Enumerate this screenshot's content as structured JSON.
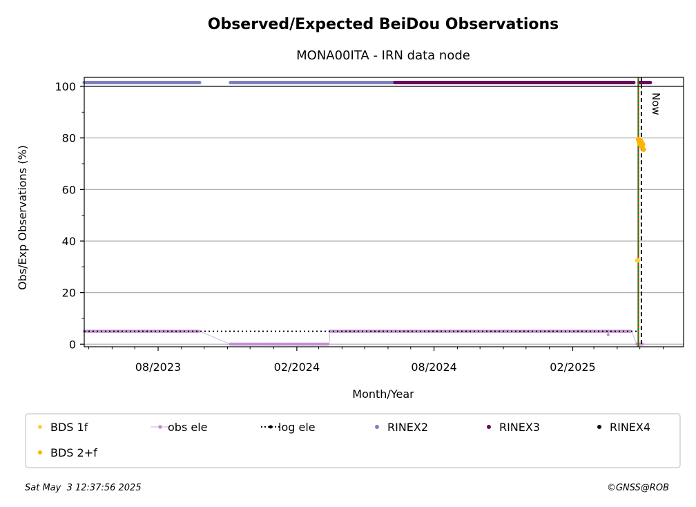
{
  "chart_data": {
    "type": "scatter",
    "title": "Observed/Expected BeiDou Observations",
    "subtitle": "MONA00ITA - IRN data node",
    "xlabel": "Month/Year",
    "ylabel": "Obs/Exp Observations (%)",
    "x_range": [
      "2023-04-25",
      "2025-06-28"
    ],
    "ylim": [
      -1,
      103.5
    ],
    "y_ticks": [
      0,
      20,
      40,
      60,
      80,
      100
    ],
    "x_ticks": [
      "2023-08-01",
      "2024-02-01",
      "2024-08-01",
      "2025-02-01"
    ],
    "x_tick_labels": [
      "08/2023",
      "02/2024",
      "08/2024",
      "02/2025"
    ],
    "grid": "horizontal",
    "now_label": "Now",
    "now_date": "2025-05-03",
    "marker_dates": [
      "2025-04-29"
    ],
    "legend": {
      "placement": "bottom",
      "entries": [
        {
          "name": "BDS 1f",
          "color": "#ffcf40",
          "marker": "dot"
        },
        {
          "name": "obs ele",
          "color": "#c38fd0",
          "marker": "line-dot"
        },
        {
          "name": "log ele",
          "color": "#000000",
          "marker": "dotted-line"
        },
        {
          "name": "RINEX2",
          "color": "#8080c0",
          "marker": "dot"
        },
        {
          "name": "RINEX3",
          "color": "#6a0a5e",
          "marker": "dot"
        },
        {
          "name": "RINEX4",
          "color": "#1a0618",
          "marker": "dot"
        },
        {
          "name": "BDS 2+f",
          "color": "#ffb400",
          "marker": "dot"
        }
      ]
    },
    "series": [
      {
        "name": "RINEX2",
        "color": "#8080c0",
        "kind": "bar",
        "y": 101.5,
        "segments": [
          [
            "2023-04-25",
            "2023-09-25"
          ],
          [
            "2023-11-05",
            "2024-06-10"
          ]
        ]
      },
      {
        "name": "RINEX3",
        "color": "#6a0a5e",
        "kind": "bar",
        "y": 101.5,
        "segments": [
          [
            "2024-06-10",
            "2025-04-23"
          ],
          [
            "2025-04-30",
            "2025-05-15"
          ]
        ]
      },
      {
        "name": "obs ele",
        "color": "#c38fd0",
        "kind": "line",
        "points": [
          [
            "2023-04-25",
            5
          ],
          [
            "2023-09-25",
            5
          ],
          [
            "2023-11-05",
            0
          ],
          [
            "2024-03-15",
            0
          ],
          [
            "2024-03-16",
            5
          ],
          [
            "2025-04-20",
            5
          ],
          [
            "2025-04-27",
            0
          ],
          [
            "2025-05-05",
            0
          ]
        ]
      },
      {
        "name": "log ele",
        "color": "#000000",
        "kind": "dotted",
        "points": [
          [
            "2023-04-25",
            5
          ],
          [
            "2025-04-28",
            5
          ]
        ]
      },
      {
        "name": "BDS 2+f",
        "color": "#ffb400",
        "kind": "scatter",
        "points": [
          [
            "2025-04-29",
            79.5
          ],
          [
            "2025-04-30",
            78.5
          ],
          [
            "2025-05-01",
            77.5
          ],
          [
            "2025-05-02",
            79
          ],
          [
            "2025-05-03",
            78.5
          ],
          [
            "2025-05-04",
            76.5
          ],
          [
            "2025-05-05",
            77.5
          ],
          [
            "2025-05-06",
            75.5
          ]
        ]
      },
      {
        "name": "BDS 1f",
        "color": "#ffcf40",
        "kind": "scatter",
        "points": [
          [
            "2025-04-28",
            32.5
          ]
        ]
      }
    ]
  },
  "footer": {
    "timestamp": "Sat May  3 12:37:56 2025",
    "copyright": "©GNSS@ROB"
  }
}
